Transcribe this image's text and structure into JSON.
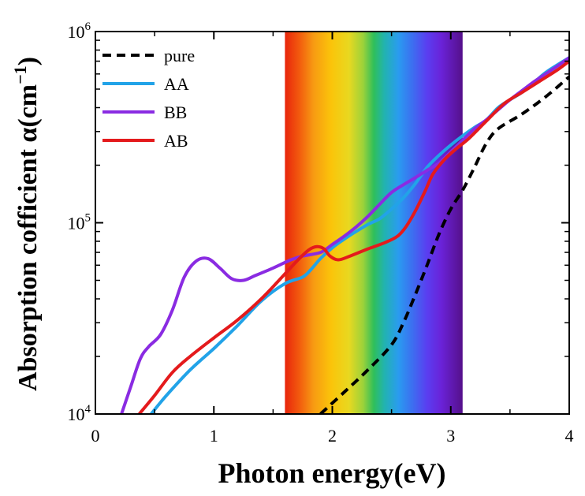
{
  "chart_data": {
    "type": "line",
    "title": "",
    "xlabel": "Photon energy(eV)",
    "ylabel": "Absorption cofficient α(cm",
    "ylabel_sup": "−1",
    "ylabel_close": ")",
    "xlim": [
      0,
      4
    ],
    "ylim": [
      10000,
      1000000
    ],
    "yscale": "log",
    "x_ticks": [
      0,
      1,
      2,
      3,
      4
    ],
    "x_tick_labels": [
      "0",
      "1",
      "2",
      "3",
      "4"
    ],
    "y_ticks": [
      10000,
      100000,
      1000000
    ],
    "y_tick_labels": [
      {
        "base": "10",
        "exp": "4"
      },
      {
        "base": "10",
        "exp": "5"
      },
      {
        "base": "10",
        "exp": "6"
      }
    ],
    "visible_spectrum_band": [
      1.6,
      3.1
    ],
    "legend_position": "top-left",
    "series": [
      {
        "name": "pure",
        "color": "#000000",
        "dash": "dashed",
        "x": [
          1.9,
          2.1,
          2.3,
          2.5,
          2.6,
          2.7,
          2.8,
          2.9,
          3.0,
          3.1,
          3.2,
          3.3,
          3.4,
          3.6,
          3.8,
          4.0
        ],
        "y": [
          10000,
          13000,
          17000,
          23000,
          30000,
          42000,
          60000,
          87000,
          118000,
          148000,
          195000,
          260000,
          310000,
          370000,
          455000,
          580000
        ]
      },
      {
        "name": "AA",
        "color": "#22a3e8",
        "dash": "solid",
        "x": [
          0.47,
          0.6,
          0.8,
          1.0,
          1.2,
          1.4,
          1.6,
          1.75,
          1.82,
          1.9,
          2.0,
          2.1,
          2.2,
          2.3,
          2.4,
          2.5,
          2.6,
          2.7,
          2.8,
          2.9,
          3.0,
          3.1,
          3.2,
          3.3,
          3.4,
          3.5,
          3.6,
          3.7,
          3.8,
          3.9,
          4.0
        ],
        "y": [
          10000,
          12500,
          17000,
          22000,
          29000,
          39000,
          48000,
          52000,
          57000,
          65000,
          74000,
          82000,
          90000,
          98000,
          105000,
          118000,
          135000,
          160000,
          195000,
          225000,
          255000,
          285000,
          315000,
          345000,
          400000,
          440000,
          480000,
          540000,
          610000,
          670000,
          730000
        ]
      },
      {
        "name": "BB",
        "color": "#8a2be2",
        "dash": "solid",
        "x": [
          0.22,
          0.3,
          0.38,
          0.45,
          0.55,
          0.65,
          0.75,
          0.85,
          0.95,
          1.05,
          1.15,
          1.25,
          1.35,
          1.5,
          1.65,
          1.75,
          1.9,
          2.0,
          2.1,
          2.2,
          2.3,
          2.4,
          2.5,
          2.6,
          2.7,
          2.8,
          2.9,
          3.0,
          3.1,
          3.2,
          3.3,
          3.4,
          3.5,
          3.6,
          3.7,
          3.8,
          3.9,
          4.0
        ],
        "y": [
          10000,
          14000,
          19500,
          22500,
          26000,
          35000,
          52000,
          63000,
          65000,
          58000,
          51000,
          50000,
          53000,
          58000,
          64000,
          67000,
          70000,
          77000,
          85000,
          95000,
          108000,
          125000,
          144000,
          158000,
          172000,
          188000,
          205000,
          235000,
          270000,
          310000,
          345000,
          390000,
          440000,
          490000,
          545000,
          600000,
          660000,
          730000
        ]
      },
      {
        "name": "AB",
        "color": "#e41a1c",
        "dash": "solid",
        "x": [
          0.37,
          0.5,
          0.65,
          0.8,
          1.0,
          1.2,
          1.4,
          1.55,
          1.7,
          1.8,
          1.87,
          1.93,
          1.98,
          2.05,
          2.15,
          2.3,
          2.45,
          2.55,
          2.62,
          2.7,
          2.78,
          2.85,
          2.95,
          3.05,
          3.15,
          3.3,
          3.45,
          3.6,
          3.75,
          3.9,
          4.0
        ],
        "y": [
          10000,
          12500,
          16500,
          20000,
          25000,
          31000,
          40000,
          50000,
          63000,
          72000,
          75000,
          73000,
          67000,
          64000,
          67000,
          73000,
          79000,
          85000,
          95000,
          115000,
          145000,
          180000,
          215000,
          245000,
          275000,
          340000,
          420000,
          480000,
          550000,
          630000,
          700000
        ]
      }
    ]
  }
}
